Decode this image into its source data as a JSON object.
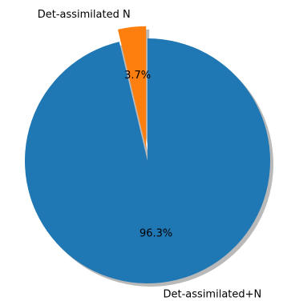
{
  "chart_data": {
    "type": "pie",
    "slices": [
      {
        "label": "Det-assimilated+N",
        "value": 96.3,
        "pct_label": "96.3%",
        "color": "#1f77b4",
        "exploded": false
      },
      {
        "label": "Det-assimilated N",
        "value": 3.7,
        "pct_label": "3.7%",
        "color": "#ff7f0e",
        "exploded": true
      }
    ],
    "shadow": true,
    "start_angle_deg": 90,
    "direction": "clockwise"
  }
}
